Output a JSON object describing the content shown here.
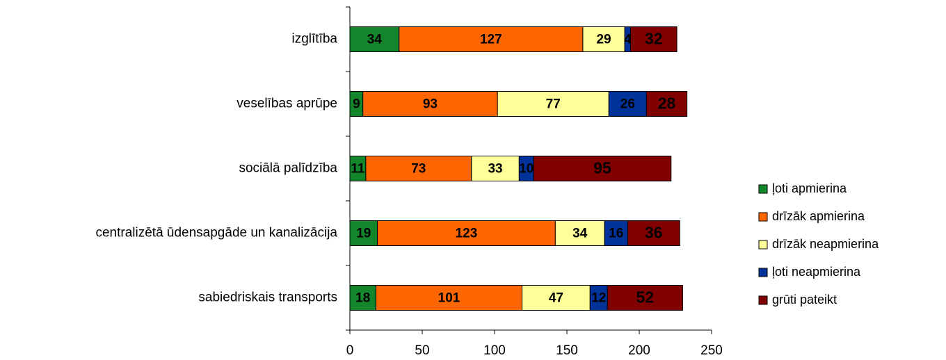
{
  "chart_data": {
    "type": "stacked-barh",
    "categories": [
      "izglītība",
      "veselības aprūpe",
      "sociālā palīdzība",
      "centralizētā ūdensapgāde un kanalizācija",
      "sabiedriskais transports"
    ],
    "series": [
      {
        "name": "ļoti apmierina",
        "color": "#13862b",
        "label_color": "#000000",
        "values": [
          34,
          9,
          11,
          19,
          18
        ]
      },
      {
        "name": "drīzāk apmierina",
        "color": "#ff6600",
        "label_color": "#000000",
        "values": [
          127,
          93,
          73,
          123,
          101
        ]
      },
      {
        "name": "drīzāk neapmierina",
        "color": "#ffff99",
        "label_color": "#000000",
        "values": [
          29,
          77,
          33,
          34,
          47
        ]
      },
      {
        "name": "ļoti neapmierina",
        "color": "#003399",
        "label_color": "#ffffff",
        "values": [
          4,
          26,
          10,
          16,
          12
        ]
      },
      {
        "name": "grūti pateikt",
        "color": "#800000",
        "label_color": "#ffffff",
        "values": [
          32,
          28,
          95,
          36,
          52
        ]
      }
    ],
    "xlim": [
      0,
      250
    ],
    "xticks": [
      0,
      50,
      100,
      150,
      200,
      250
    ],
    "grid": false,
    "legend": "right"
  }
}
